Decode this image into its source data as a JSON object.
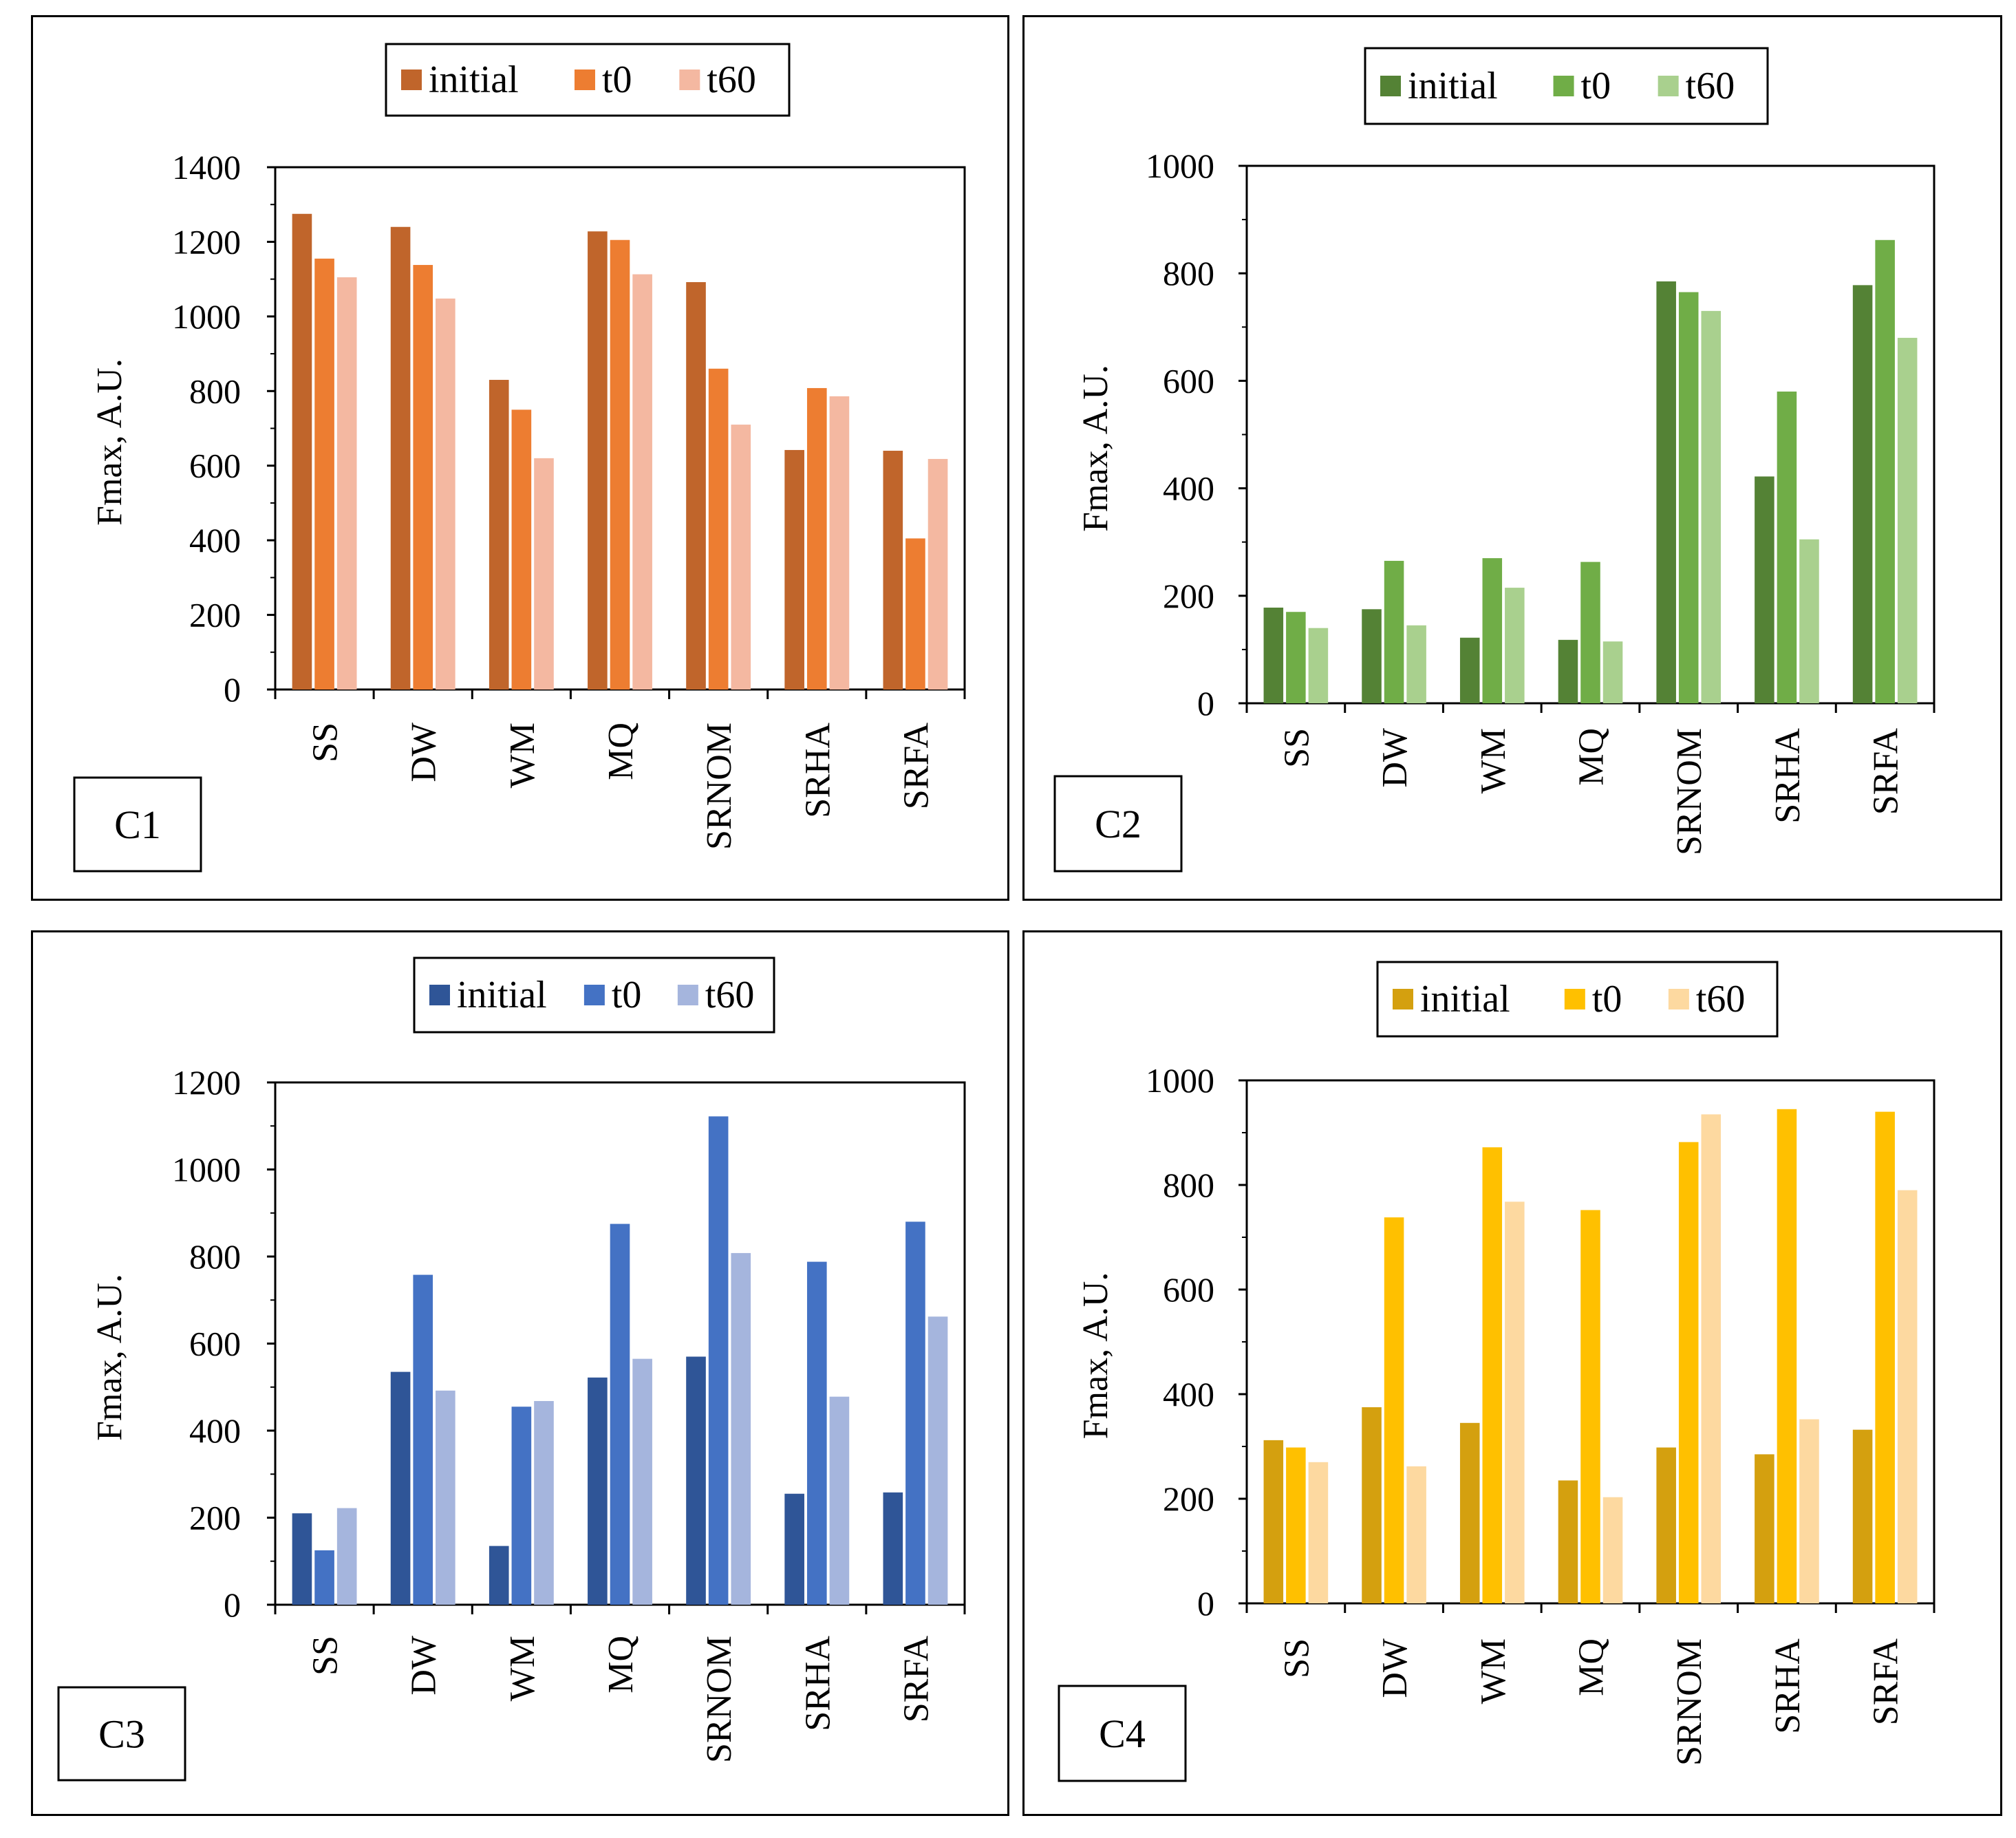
{
  "chart_data": [
    {
      "type": "bar",
      "panel_label": "C1",
      "ylabel": "Fmax, A.U.",
      "xlabel": "",
      "ylim": [
        0,
        1400
      ],
      "yticks": [
        0,
        200,
        400,
        600,
        800,
        1000,
        1200,
        1400
      ],
      "categories": [
        "SS",
        "DW",
        "WM",
        "MQ",
        "SRNOM",
        "SRHA",
        "SRFA"
      ],
      "legend_position": "top",
      "series": [
        {
          "name": "initial",
          "color": "#C0652B",
          "values": [
            1275,
            1240,
            830,
            1228,
            1092,
            642,
            640
          ]
        },
        {
          "name": "t0",
          "color": "#ED7D31",
          "values": [
            1155,
            1138,
            750,
            1205,
            860,
            808,
            405
          ]
        },
        {
          "name": "t60",
          "color": "#F4B8A1",
          "values": [
            1105,
            1048,
            620,
            1113,
            710,
            786,
            618
          ]
        }
      ]
    },
    {
      "type": "bar",
      "panel_label": "C2",
      "ylabel": "Fmax, A.U.",
      "xlabel": "",
      "ylim": [
        0,
        1000
      ],
      "yticks": [
        0,
        200,
        400,
        600,
        800,
        1000
      ],
      "categories": [
        "SS",
        "DW",
        "WM",
        "MQ",
        "SRNOM",
        "SRHA",
        "SRFA"
      ],
      "legend_position": "top",
      "series": [
        {
          "name": "initial",
          "color": "#548235",
          "values": [
            178,
            175,
            122,
            118,
            785,
            422,
            778
          ]
        },
        {
          "name": "t0",
          "color": "#70AD47",
          "values": [
            170,
            265,
            270,
            263,
            765,
            580,
            862
          ]
        },
        {
          "name": "t60",
          "color": "#A9D08E",
          "values": [
            140,
            145,
            215,
            115,
            730,
            305,
            680
          ]
        }
      ]
    },
    {
      "type": "bar",
      "panel_label": "C3",
      "ylabel": "Fmax, A.U.",
      "xlabel": "",
      "ylim": [
        0,
        1200
      ],
      "yticks": [
        0,
        200,
        400,
        600,
        800,
        1000,
        1200
      ],
      "categories": [
        "SS",
        "DW",
        "WM",
        "MQ",
        "SRNOM",
        "SRHA",
        "SRFA"
      ],
      "legend_position": "top",
      "series": [
        {
          "name": "initial",
          "color": "#2F5597",
          "values": [
            210,
            535,
            135,
            522,
            570,
            255,
            258
          ]
        },
        {
          "name": "t0",
          "color": "#4472C4",
          "values": [
            125,
            758,
            455,
            875,
            1122,
            788,
            880
          ]
        },
        {
          "name": "t60",
          "color": "#A5B5DD",
          "values": [
            222,
            492,
            468,
            565,
            808,
            478,
            662
          ]
        }
      ]
    },
    {
      "type": "bar",
      "panel_label": "C4",
      "ylabel": "Fmax, A.U.",
      "xlabel": "",
      "ylim": [
        0,
        1000
      ],
      "yticks": [
        0,
        200,
        400,
        600,
        800,
        1000
      ],
      "categories": [
        "SS",
        "DW",
        "WM",
        "MQ",
        "SRNOM",
        "SRHA",
        "SRFA"
      ],
      "legend_position": "top",
      "series": [
        {
          "name": "initial",
          "color": "#D4A00F",
          "values": [
            312,
            375,
            345,
            235,
            298,
            285,
            332
          ]
        },
        {
          "name": "t0",
          "color": "#FFC000",
          "values": [
            298,
            738,
            872,
            752,
            882,
            945,
            940
          ]
        },
        {
          "name": "t60",
          "color": "#FDD9A0",
          "values": [
            270,
            262,
            768,
            203,
            935,
            352,
            790
          ]
        }
      ]
    }
  ]
}
